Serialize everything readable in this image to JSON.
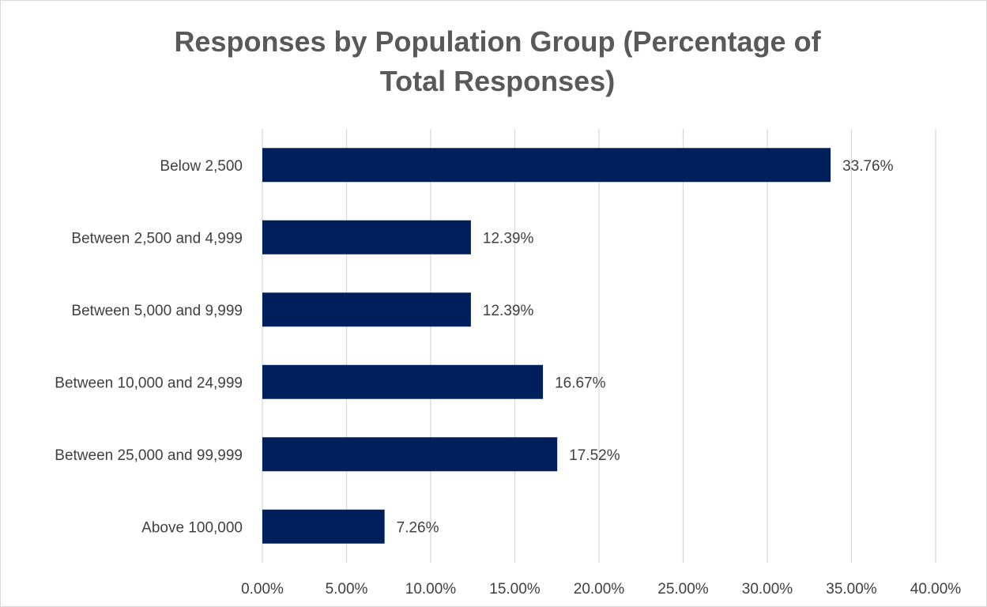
{
  "chart_data": {
    "type": "bar",
    "orientation": "horizontal",
    "title": "Responses by Population Group (Percentage of Total Responses)",
    "title_lines": [
      "Responses by Population Group (Percentage of",
      "Total Responses)"
    ],
    "categories": [
      "Below 2,500",
      "Between 2,500 and 4,999",
      "Between 5,000 and 9,999",
      "Between 10,000 and 24,999",
      "Between 25,000 and 99,999",
      "Above 100,000"
    ],
    "values": [
      33.76,
      12.39,
      12.39,
      16.67,
      17.52,
      7.26
    ],
    "data_labels": [
      "33.76%",
      "12.39%",
      "12.39%",
      "16.67%",
      "17.52%",
      "7.26%"
    ],
    "xlim": [
      0,
      40
    ],
    "x_ticks": [
      0,
      5,
      10,
      15,
      20,
      25,
      30,
      35,
      40
    ],
    "x_tick_labels": [
      "0.00%",
      "5.00%",
      "10.00%",
      "15.00%",
      "20.00%",
      "25.00%",
      "30.00%",
      "35.00%",
      "40.00%"
    ],
    "xlabel": "",
    "ylabel": "",
    "grid": "vertical",
    "legend": "none",
    "colors": {
      "bar": "#001f5b",
      "grid": "#d9d9d9",
      "text": "#404040",
      "title": "#595959"
    }
  }
}
